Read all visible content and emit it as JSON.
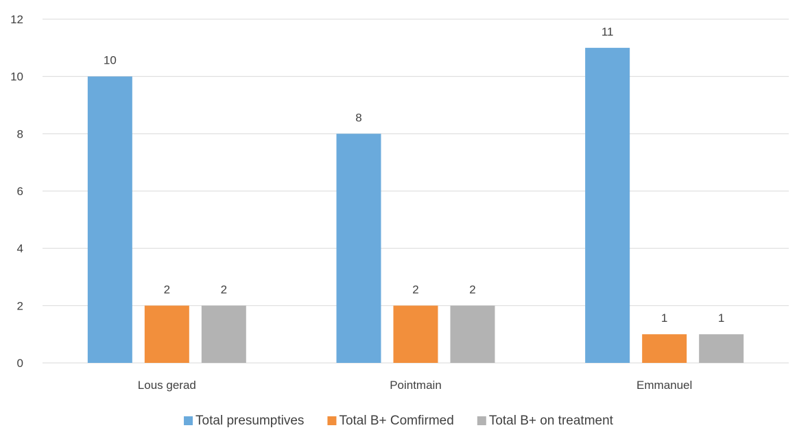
{
  "chart_data": {
    "type": "bar",
    "title": "",
    "xlabel": "",
    "ylabel": "",
    "categories": [
      "Lous gerad",
      "Pointmain",
      "Emmanuel"
    ],
    "series": [
      {
        "name": "Total presumptives",
        "values": [
          10,
          8,
          11
        ],
        "color": "#6aaadc"
      },
      {
        "name": "Total B+ Comfirmed",
        "values": [
          2,
          2,
          1
        ],
        "color": "#f28f3c"
      },
      {
        "name": "Total B+ on treatment",
        "values": [
          2,
          2,
          1
        ],
        "color": "#b3b3b3"
      }
    ],
    "ylim": [
      0,
      12
    ],
    "yticks": [
      0,
      2,
      4,
      6,
      8,
      10,
      12
    ],
    "grid": true,
    "data_labels": true,
    "legend_position": "bottom"
  }
}
